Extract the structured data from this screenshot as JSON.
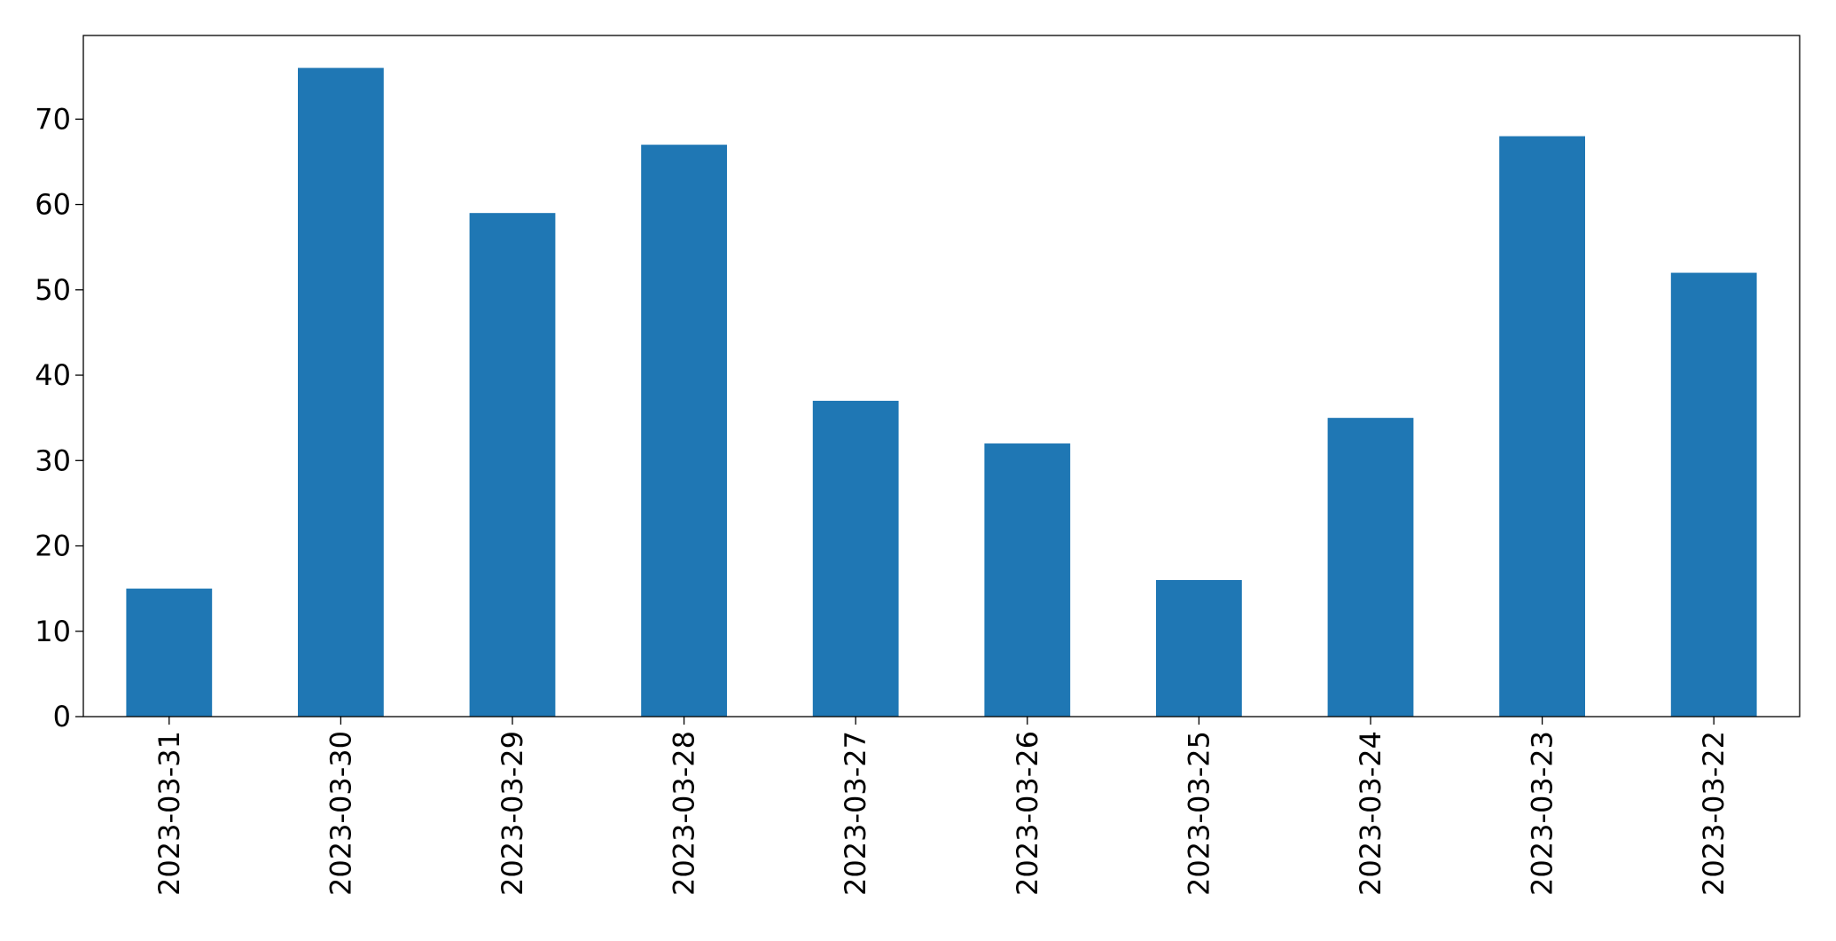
{
  "chart_data": {
    "type": "bar",
    "categories": [
      "2023-03-31",
      "2023-03-30",
      "2023-03-29",
      "2023-03-28",
      "2023-03-27",
      "2023-03-26",
      "2023-03-25",
      "2023-03-24",
      "2023-03-23",
      "2023-03-22"
    ],
    "values": [
      15,
      76,
      59,
      67,
      37,
      32,
      16,
      35,
      68,
      52
    ],
    "color": "#1f77b4",
    "ylim": [
      0,
      79.8
    ],
    "yticks": [
      0,
      10,
      20,
      30,
      40,
      50,
      60,
      70
    ],
    "grid": false
  }
}
